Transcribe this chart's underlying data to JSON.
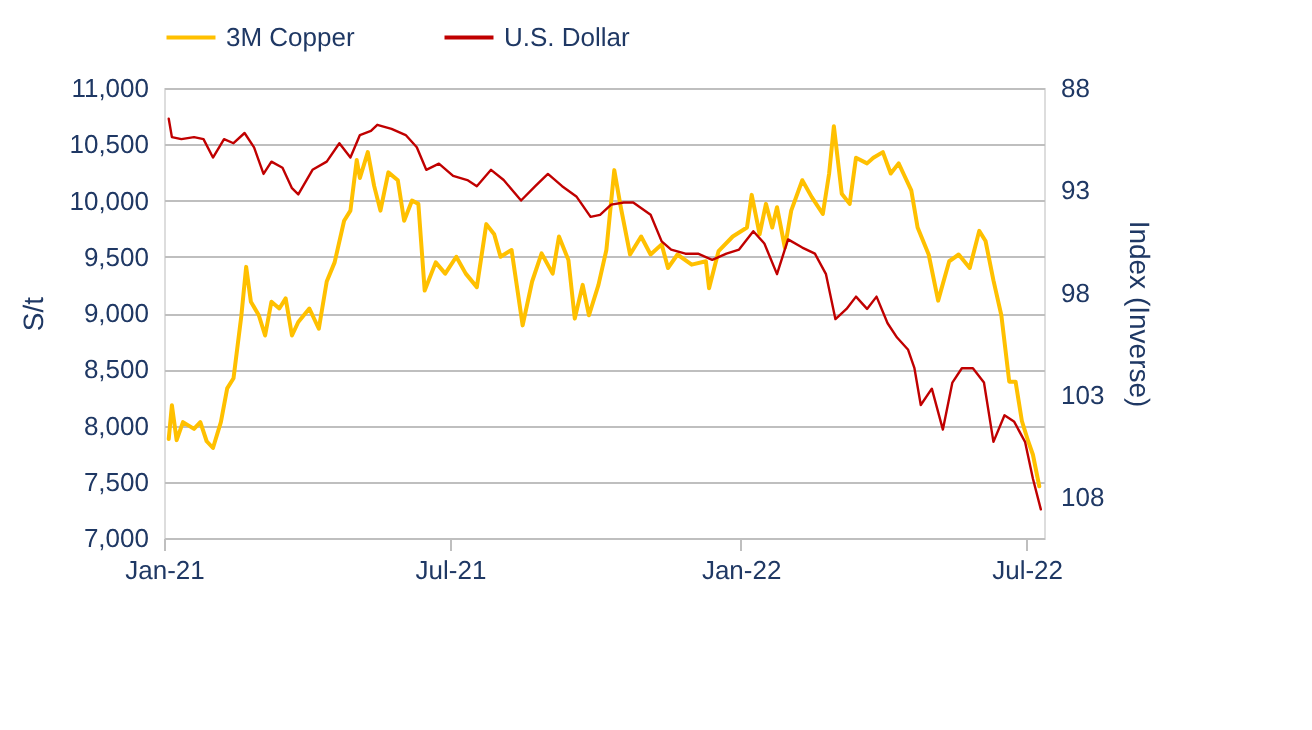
{
  "chart_data": {
    "type": "line",
    "ylabel": "S/t",
    "y2label": "Index (Inverse)",
    "xlim": [
      "2021-01-01",
      "2022-07-12"
    ],
    "xticks": [
      {
        "value": "2021-01-01",
        "label": "Jan-21"
      },
      {
        "value": "2021-07-01",
        "label": "Jul-21"
      },
      {
        "value": "2022-01-01",
        "label": "Jan-22"
      },
      {
        "value": "2022-07-01",
        "label": "Jul-22"
      }
    ],
    "ylim": [
      7000,
      11000
    ],
    "yticks": [
      {
        "value": 7000,
        "label": "7,000"
      },
      {
        "value": 7500,
        "label": "7,500"
      },
      {
        "value": 8000,
        "label": "8,000"
      },
      {
        "value": 8500,
        "label": "8,500"
      },
      {
        "value": 9000,
        "label": "9,000"
      },
      {
        "value": 9500,
        "label": "9,500"
      },
      {
        "value": 10000,
        "label": "10,000"
      },
      {
        "value": 10500,
        "label": "10,500"
      },
      {
        "value": 11000,
        "label": "11,000"
      }
    ],
    "y2lim": [
      110,
      88
    ],
    "y2ticks": [
      88,
      93,
      98,
      103,
      108
    ],
    "grid": "y",
    "legend": "top",
    "marker": "none",
    "line_style": "solid",
    "series": [
      {
        "name": "3M Copper",
        "color": "#ffc000",
        "x": [
          "2021-01-04",
          "2021-01-06",
          "2021-01-09",
          "2021-01-13",
          "2021-01-20",
          "2021-01-24",
          "2021-01-28",
          "2021-02-01",
          "2021-02-06",
          "2021-02-10",
          "2021-02-14",
          "2021-02-19",
          "2021-02-22",
          "2021-02-25",
          "2021-03-02",
          "2021-03-06",
          "2021-03-10",
          "2021-03-15",
          "2021-03-19",
          "2021-03-23",
          "2021-03-27",
          "2021-04-03",
          "2021-04-09",
          "2021-04-14",
          "2021-04-19",
          "2021-04-25",
          "2021-04-29",
          "2021-05-03",
          "2021-05-05",
          "2021-05-10",
          "2021-05-14",
          "2021-05-18",
          "2021-05-23",
          "2021-05-29",
          "2021-06-02",
          "2021-06-07",
          "2021-06-11",
          "2021-06-15",
          "2021-06-22",
          "2021-06-28",
          "2021-07-05",
          "2021-07-11",
          "2021-07-18",
          "2021-07-24",
          "2021-07-29",
          "2021-08-02",
          "2021-08-09",
          "2021-08-16",
          "2021-08-22",
          "2021-08-28",
          "2021-09-04",
          "2021-09-08",
          "2021-09-14",
          "2021-09-18",
          "2021-09-23",
          "2021-09-27",
          "2021-10-03",
          "2021-10-08",
          "2021-10-13",
          "2021-10-17",
          "2021-10-23",
          "2021-10-30",
          "2021-11-05",
          "2021-11-12",
          "2021-11-16",
          "2021-11-22",
          "2021-12-01",
          "2021-12-10",
          "2021-12-12",
          "2021-12-18",
          "2021-12-27",
          "2022-01-05",
          "2022-01-08",
          "2022-01-13",
          "2022-01-17",
          "2022-01-21",
          "2022-01-24",
          "2022-01-29",
          "2022-02-02",
          "2022-02-09",
          "2022-02-15",
          "2022-02-22",
          "2022-02-26",
          "2022-03-01",
          "2022-03-06",
          "2022-03-11",
          "2022-03-15",
          "2022-03-22",
          "2022-03-26",
          "2022-04-01",
          "2022-04-06",
          "2022-04-11",
          "2022-04-14",
          "2022-04-19",
          "2022-04-23",
          "2022-04-30",
          "2022-05-06",
          "2022-05-13",
          "2022-05-19",
          "2022-05-26",
          "2022-06-01",
          "2022-06-05",
          "2022-06-10",
          "2022-06-15",
          "2022-06-20",
          "2022-06-24",
          "2022-06-28",
          "2022-07-02",
          "2022-07-05",
          "2022-07-09"
        ],
        "values": [
          7880,
          8180,
          7870,
          8030,
          7970,
          8030,
          7860,
          7800,
          8030,
          8330,
          8420,
          8980,
          9410,
          9100,
          8980,
          8800,
          9100,
          9040,
          9130,
          8800,
          8920,
          9040,
          8860,
          9280,
          9450,
          9820,
          9910,
          10360,
          10200,
          10430,
          10130,
          9910,
          10250,
          10180,
          9820,
          10000,
          9970,
          9200,
          9450,
          9350,
          9500,
          9350,
          9230,
          9790,
          9700,
          9500,
          9560,
          8890,
          9280,
          9530,
          9350,
          9680,
          9470,
          8950,
          9250,
          8980,
          9250,
          9560,
          10270,
          9950,
          9520,
          9680,
          9520,
          9610,
          9400,
          9520,
          9430,
          9460,
          9220,
          9550,
          9680,
          9760,
          10050,
          9700,
          9970,
          9760,
          9940,
          9580,
          9910,
          10180,
          10030,
          9880,
          10240,
          10660,
          10060,
          9970,
          10380,
          10330,
          10380,
          10430,
          10240,
          10330,
          10240,
          10090,
          9760,
          9520,
          9110,
          9460,
          9520,
          9400,
          9730,
          9640,
          9290,
          8980,
          8390,
          8390,
          8040,
          7860,
          7740,
          7460
        ]
      },
      {
        "name": "U.S. Dollar",
        "color": "#c00000",
        "axis": "y2",
        "x": [
          "2021-01-04",
          "2021-01-06",
          "2021-01-12",
          "2021-01-20",
          "2021-01-26",
          "2021-02-01",
          "2021-02-08",
          "2021-02-14",
          "2021-02-21",
          "2021-02-27",
          "2021-03-05",
          "2021-03-10",
          "2021-03-17",
          "2021-03-23",
          "2021-03-27",
          "2021-04-05",
          "2021-04-14",
          "2021-04-22",
          "2021-04-29",
          "2021-05-05",
          "2021-05-12",
          "2021-05-16",
          "2021-05-25",
          "2021-06-03",
          "2021-06-10",
          "2021-06-16",
          "2021-06-24",
          "2021-07-03",
          "2021-07-12",
          "2021-07-18",
          "2021-07-27",
          "2021-08-04",
          "2021-08-15",
          "2021-08-24",
          "2021-09-01",
          "2021-09-10",
          "2021-09-19",
          "2021-09-28",
          "2021-10-04",
          "2021-10-11",
          "2021-10-19",
          "2021-10-25",
          "2021-11-05",
          "2021-11-12",
          "2021-11-18",
          "2021-11-27",
          "2021-12-05",
          "2021-12-14",
          "2021-12-23",
          "2021-12-31",
          "2022-01-09",
          "2022-01-16",
          "2022-01-24",
          "2022-01-31",
          "2022-02-09",
          "2022-02-17",
          "2022-02-24",
          "2022-03-02",
          "2022-03-09",
          "2022-03-15",
          "2022-03-22",
          "2022-03-28",
          "2022-04-04",
          "2022-04-10",
          "2022-04-17",
          "2022-04-21",
          "2022-04-25",
          "2022-05-02",
          "2022-05-09",
          "2022-05-15",
          "2022-05-21",
          "2022-05-28",
          "2022-06-04",
          "2022-06-10",
          "2022-06-17",
          "2022-06-23",
          "2022-06-30",
          "2022-07-05",
          "2022-07-10"
        ],
        "values": [
          89.5,
          90.4,
          90.5,
          90.4,
          90.5,
          91.4,
          90.5,
          90.7,
          90.2,
          90.9,
          92.2,
          91.6,
          91.9,
          92.9,
          93.2,
          92.0,
          91.6,
          90.7,
          91.4,
          90.3,
          90.1,
          89.8,
          90.0,
          90.3,
          90.9,
          92.0,
          91.7,
          92.3,
          92.5,
          92.8,
          92.0,
          92.5,
          93.5,
          92.8,
          92.2,
          92.8,
          93.3,
          94.3,
          94.2,
          93.7,
          93.6,
          93.6,
          94.2,
          95.5,
          95.9,
          96.1,
          96.1,
          96.4,
          96.1,
          95.9,
          95.0,
          95.6,
          97.1,
          95.4,
          95.8,
          96.1,
          97.1,
          99.3,
          98.8,
          98.2,
          98.8,
          98.2,
          99.5,
          100.2,
          100.8,
          101.7,
          103.5,
          102.7,
          104.7,
          102.4,
          101.7,
          101.7,
          102.4,
          105.3,
          104.0,
          104.3,
          105.3,
          107.1,
          108.6
        ]
      }
    ]
  }
}
